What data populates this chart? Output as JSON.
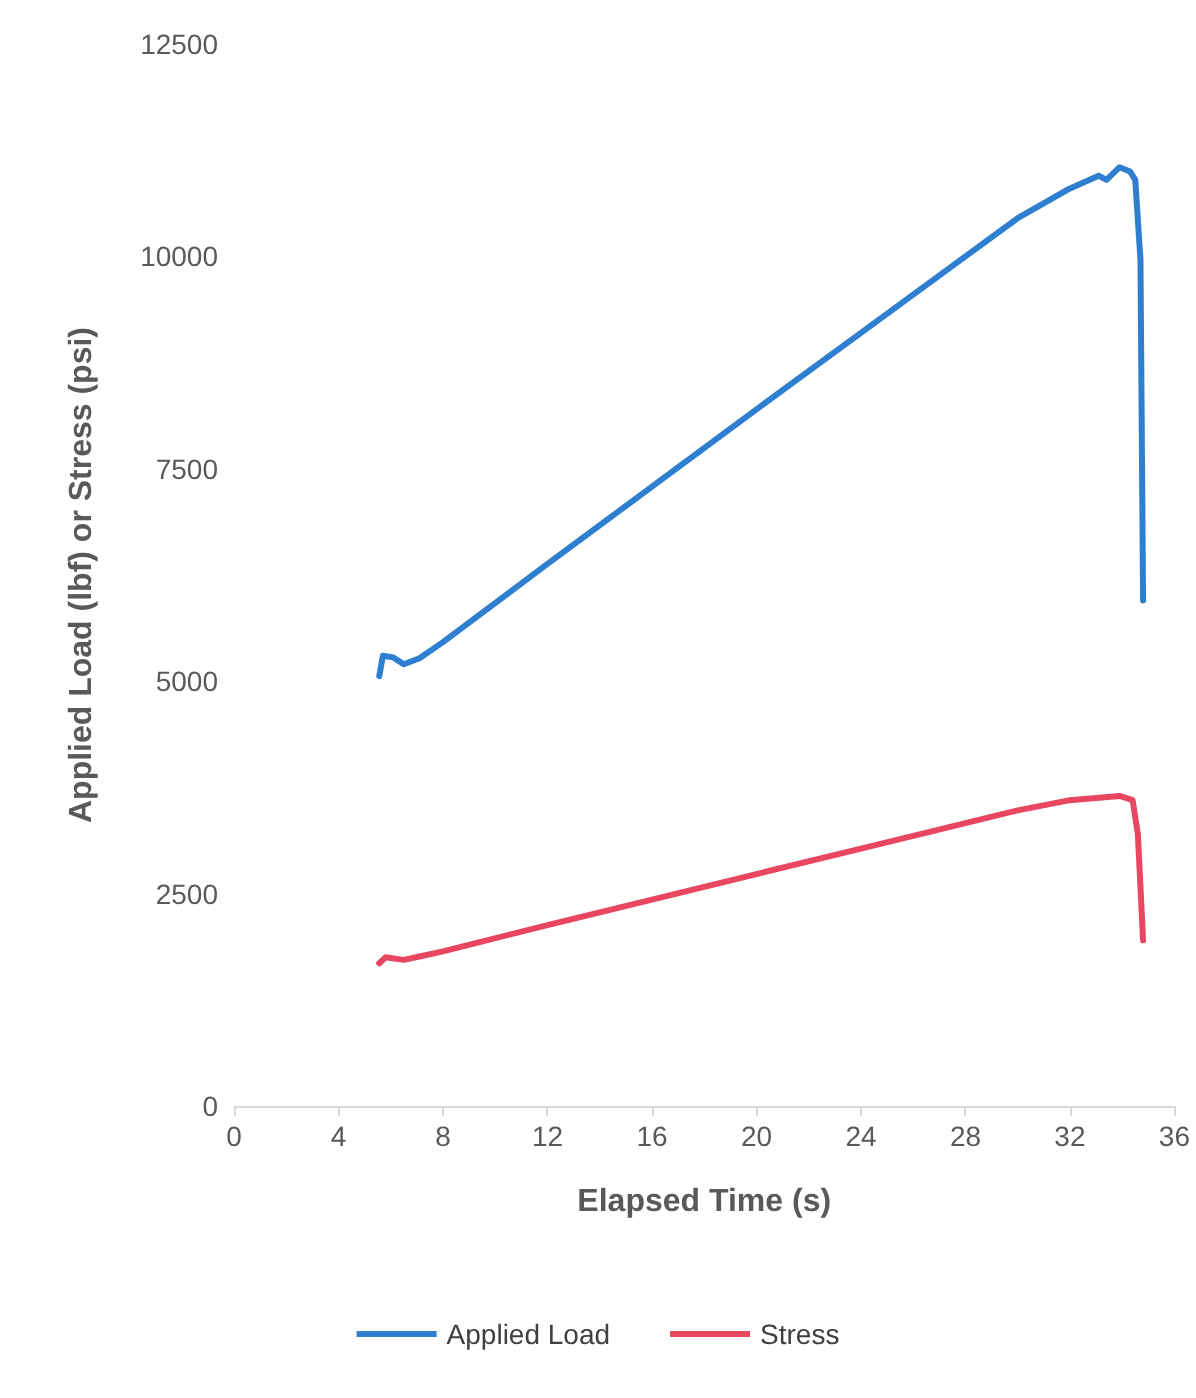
{
  "chart_data": {
    "type": "line",
    "xlabel": "Elapsed Time (s)",
    "ylabel": "Applied Load (lbf) or Stress (psi)",
    "xlim": [
      0,
      36
    ],
    "xticks": [
      0,
      4,
      8,
      12,
      16,
      20,
      24,
      28,
      32,
      36
    ],
    "ylim": [
      0,
      12500
    ],
    "yticks": [
      0,
      2500,
      5000,
      7500,
      10000,
      12500
    ],
    "grid": false,
    "legend": "bottom",
    "marker": "none",
    "line_style": "solid",
    "series": [
      {
        "name": "Applied Load",
        "color": "#2e7fd0",
        "x": [
          5.56,
          5.7,
          6.1,
          6.5,
          7.1,
          8,
          12,
          16,
          20,
          24,
          28,
          30,
          32,
          33.1,
          33.4,
          33.9,
          34.3,
          34.5,
          34.7,
          34.8
        ],
        "values": [
          5060,
          5300,
          5280,
          5200,
          5270,
          5460,
          6380,
          7290,
          8200,
          9100,
          10000,
          10450,
          10800,
          10950,
          10900,
          11050,
          11000,
          10900,
          9960,
          5950
        ]
      },
      {
        "name": "Stress",
        "color": "#e8475f",
        "x": [
          5.56,
          5.8,
          6.5,
          7.1,
          8,
          12,
          16,
          20,
          24,
          28,
          30,
          32,
          33.9,
          34.4,
          34.6,
          34.8
        ],
        "values": [
          1680,
          1750,
          1720,
          1760,
          1820,
          2130,
          2430,
          2730,
          3030,
          3330,
          3480,
          3600,
          3650,
          3600,
          3200,
          1950
        ]
      }
    ]
  }
}
